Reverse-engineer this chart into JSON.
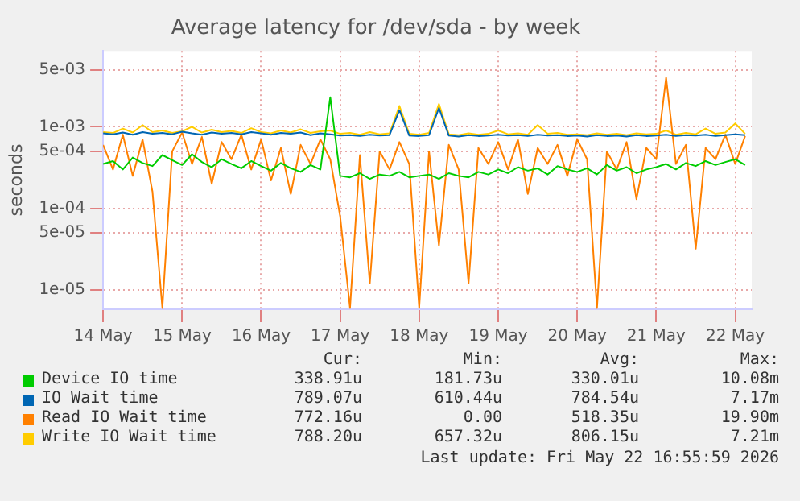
{
  "chart_data": {
    "type": "line",
    "title": "Average latency for /dev/sda - by week",
    "ylabel": "seconds",
    "log": "y",
    "grid": true,
    "legend": "bottom",
    "marker": "none",
    "line_style": "solid",
    "xlim": [
      "2026-05-14T00:00",
      "2026-05-22T05:00"
    ],
    "xticks": [
      {
        "value": "2026-05-14",
        "label": "14 May"
      },
      {
        "value": "2026-05-15",
        "label": "15 May"
      },
      {
        "value": "2026-05-16",
        "label": "16 May"
      },
      {
        "value": "2026-05-17",
        "label": "17 May"
      },
      {
        "value": "2026-05-18",
        "label": "18 May"
      },
      {
        "value": "2026-05-19",
        "label": "19 May"
      },
      {
        "value": "2026-05-20",
        "label": "20 May"
      },
      {
        "value": "2026-05-21",
        "label": "21 May"
      },
      {
        "value": "2026-05-22",
        "label": "22 May"
      }
    ],
    "ylim": [
      5.8e-06,
      0.0085
    ],
    "yticks": [
      {
        "value": 1e-05,
        "label": "1e-05"
      },
      {
        "value": 5e-05,
        "label": "5e-05"
      },
      {
        "value": 0.0001,
        "label": "1e-04"
      },
      {
        "value": 0.0005,
        "label": "5e-04"
      },
      {
        "value": 0.001,
        "label": "1e-03"
      },
      {
        "value": 0.005,
        "label": "5e-03"
      }
    ],
    "x": [
      "2026-05-14T00:00",
      "2026-05-14T03:00",
      "2026-05-14T06:00",
      "2026-05-14T09:00",
      "2026-05-14T12:00",
      "2026-05-14T15:00",
      "2026-05-14T18:00",
      "2026-05-14T21:00",
      "2026-05-15T00:00",
      "2026-05-15T03:00",
      "2026-05-15T06:00",
      "2026-05-15T09:00",
      "2026-05-15T12:00",
      "2026-05-15T15:00",
      "2026-05-15T18:00",
      "2026-05-15T21:00",
      "2026-05-16T00:00",
      "2026-05-16T03:00",
      "2026-05-16T06:00",
      "2026-05-16T09:00",
      "2026-05-16T12:00",
      "2026-05-16T15:00",
      "2026-05-16T18:00",
      "2026-05-16T21:00",
      "2026-05-17T00:00",
      "2026-05-17T03:00",
      "2026-05-17T06:00",
      "2026-05-17T09:00",
      "2026-05-17T12:00",
      "2026-05-17T15:00",
      "2026-05-17T18:00",
      "2026-05-17T21:00",
      "2026-05-18T00:00",
      "2026-05-18T03:00",
      "2026-05-18T06:00",
      "2026-05-18T09:00",
      "2026-05-18T12:00",
      "2026-05-18T15:00",
      "2026-05-18T18:00",
      "2026-05-18T21:00",
      "2026-05-19T00:00",
      "2026-05-19T03:00",
      "2026-05-19T06:00",
      "2026-05-19T09:00",
      "2026-05-19T12:00",
      "2026-05-19T15:00",
      "2026-05-19T18:00",
      "2026-05-19T21:00",
      "2026-05-20T00:00",
      "2026-05-20T03:00",
      "2026-05-20T06:00",
      "2026-05-20T09:00",
      "2026-05-20T12:00",
      "2026-05-20T15:00",
      "2026-05-20T18:00",
      "2026-05-20T21:00",
      "2026-05-21T00:00",
      "2026-05-21T03:00",
      "2026-05-21T06:00",
      "2026-05-21T09:00",
      "2026-05-21T12:00",
      "2026-05-21T15:00",
      "2026-05-21T18:00",
      "2026-05-21T21:00",
      "2026-05-22T00:00",
      "2026-05-22T03:00"
    ],
    "series": [
      {
        "name": "Device IO time",
        "color": "#00cc00",
        "values": [
          0.00035,
          0.00038,
          0.0003,
          0.00042,
          0.00036,
          0.00033,
          0.00045,
          0.00039,
          0.00034,
          0.00046,
          0.00037,
          0.00032,
          0.0004,
          0.00035,
          0.00031,
          0.00038,
          0.00033,
          0.00029,
          0.00036,
          0.00031,
          0.00028,
          0.00034,
          0.0003,
          0.0023,
          0.00025,
          0.00024,
          0.00027,
          0.00023,
          0.00026,
          0.00025,
          0.00028,
          0.00024,
          0.00025,
          0.00026,
          0.00023,
          0.00027,
          0.00025,
          0.00024,
          0.00028,
          0.00026,
          0.0003,
          0.00027,
          0.00032,
          0.00029,
          0.00031,
          0.00026,
          0.00033,
          0.0003,
          0.00028,
          0.00031,
          0.00026,
          0.00034,
          0.00029,
          0.00032,
          0.00027,
          0.0003,
          0.00032,
          0.00035,
          0.0003,
          0.00036,
          0.00033,
          0.00038,
          0.00034,
          0.00037,
          0.0004,
          0.00034
        ]
      },
      {
        "name": "IO Wait time",
        "color": "#0066b3",
        "values": [
          0.00083,
          0.00081,
          0.00085,
          0.0008,
          0.00086,
          0.00082,
          0.00084,
          0.00081,
          0.00087,
          0.00083,
          0.0008,
          0.00085,
          0.00082,
          0.00084,
          0.00081,
          0.00086,
          0.00083,
          0.0008,
          0.00084,
          0.00082,
          0.00085,
          0.00079,
          0.00083,
          0.00081,
          0.00078,
          0.00079,
          0.00077,
          0.0008,
          0.00078,
          0.00079,
          0.0016,
          0.00078,
          0.00077,
          0.00079,
          0.0017,
          0.00078,
          0.00076,
          0.00079,
          0.00077,
          0.00078,
          0.0008,
          0.00078,
          0.00079,
          0.00077,
          0.0008,
          0.00078,
          0.00079,
          0.00077,
          0.00078,
          0.00076,
          0.00079,
          0.00077,
          0.00078,
          0.00076,
          0.00079,
          0.00077,
          0.00078,
          0.0008,
          0.00077,
          0.00079,
          0.00078,
          0.0008,
          0.00077,
          0.00079,
          0.00081,
          0.00079
        ]
      },
      {
        "name": "Read IO Wait time",
        "color": "#ff8000",
        "values": [
          0.0006,
          0.0003,
          0.0008,
          0.00025,
          0.0007,
          0.00016,
          6e-06,
          0.0005,
          0.00085,
          0.00035,
          0.00075,
          0.0002,
          0.00065,
          0.0004,
          0.0008,
          0.0003,
          0.0007,
          0.00022,
          0.00055,
          0.00015,
          0.0006,
          0.00035,
          0.0007,
          0.0004,
          8e-05,
          6e-06,
          0.00045,
          1.2e-05,
          0.0005,
          0.0003,
          0.00065,
          0.00035,
          6e-06,
          0.0005,
          3.5e-05,
          0.0006,
          0.0003,
          1.2e-05,
          0.00055,
          0.00035,
          0.00065,
          0.0003,
          0.0007,
          0.00015,
          0.00055,
          0.00035,
          0.0006,
          0.00025,
          0.0007,
          0.0004,
          6e-06,
          0.0005,
          0.0003,
          0.00065,
          0.00013,
          0.00055,
          0.0004,
          0.004,
          0.00035,
          0.0006,
          3.2e-05,
          0.00055,
          0.0004,
          0.0008,
          0.00035,
          0.00077
        ]
      },
      {
        "name": "Write IO Wait time",
        "color": "#ffcc00",
        "values": [
          0.00086,
          0.00084,
          0.00095,
          0.00085,
          0.00105,
          0.00086,
          0.0009,
          0.00084,
          0.00088,
          0.001,
          0.00085,
          0.00092,
          0.00086,
          0.00089,
          0.00084,
          0.00096,
          0.00086,
          0.00083,
          0.0009,
          0.00085,
          0.00093,
          0.00084,
          0.00088,
          0.0009,
          0.00082,
          0.00084,
          0.0008,
          0.00086,
          0.00081,
          0.00083,
          0.0018,
          0.00082,
          0.0008,
          0.00084,
          0.0019,
          0.00081,
          0.00079,
          0.00083,
          0.0008,
          0.00082,
          0.0009,
          0.00081,
          0.00083,
          0.0008,
          0.00105,
          0.00082,
          0.00084,
          0.0008,
          0.00081,
          0.00079,
          0.00083,
          0.0008,
          0.00082,
          0.00079,
          0.00083,
          0.00081,
          0.00082,
          0.0009,
          0.0008,
          0.00084,
          0.00081,
          0.00095,
          0.00082,
          0.00085,
          0.0011,
          0.00082
        ]
      }
    ],
    "annotations": [
      "Cur:",
      "Min:",
      "Avg:",
      "Max:",
      "338.91u",
      "181.73u",
      "330.01u",
      "10.08m",
      "789.07u",
      "610.44u",
      "784.54u",
      "7.17m",
      "772.16u",
      "0.00",
      "518.35u",
      "19.90m",
      "788.20u",
      "657.32u",
      "806.15u",
      "7.21m",
      "Last update: Fri May 22 16:55:59 2026"
    ]
  }
}
